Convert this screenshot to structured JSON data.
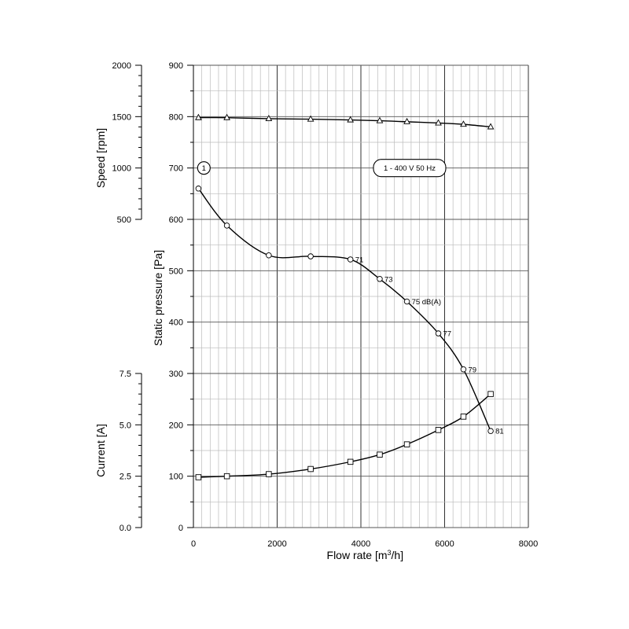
{
  "chart_data": {
    "type": "line",
    "xlabel": "Flow rate [m³/h]",
    "x_ticks": [
      "0",
      "2000",
      "4000",
      "6000",
      "8000"
    ],
    "xlim": [
      0,
      8000
    ],
    "axes": {
      "pressure": {
        "label": "Static pressure [Pa]",
        "ylim": [
          0,
          900
        ],
        "ticks": [
          "0",
          "100",
          "200",
          "300",
          "400",
          "500",
          "600",
          "700",
          "800",
          "900"
        ]
      },
      "speed": {
        "label": "Speed [rpm]",
        "ylim": [
          500,
          2000
        ],
        "ticks": [
          "500",
          "1000",
          "1500",
          "2000"
        ]
      },
      "current": {
        "label": "Current [A]",
        "ylim": [
          0,
          7.5
        ],
        "ticks": [
          "0.0",
          "2.5",
          "5.0",
          "7.5"
        ]
      }
    },
    "series": [
      {
        "axis": "speed",
        "marker": "triangle",
        "x": [
          120,
          800,
          1800,
          2800,
          3750,
          4450,
          5100,
          5850,
          6450,
          7100
        ],
        "y": [
          1490,
          1490,
          1480,
          1475,
          1468,
          1460,
          1450,
          1438,
          1425,
          1400
        ]
      },
      {
        "axis": "pressure",
        "marker": "circle",
        "x": [
          120,
          800,
          1800,
          2800,
          3750,
          4450,
          5100,
          5850,
          6450,
          7100
        ],
        "y": [
          660,
          588,
          530,
          528,
          522,
          484,
          440,
          378,
          308,
          188
        ]
      },
      {
        "axis": "current",
        "marker": "square",
        "x": [
          120,
          800,
          1800,
          2800,
          3750,
          4450,
          5100,
          5850,
          6450,
          7100
        ],
        "y": [
          2.45,
          2.5,
          2.6,
          2.85,
          3.2,
          3.55,
          4.05,
          4.75,
          5.4,
          6.5
        ]
      }
    ],
    "annotations": [
      {
        "text": "71",
        "x": 3750,
        "y": 522
      },
      {
        "text": "73",
        "x": 4450,
        "y": 484
      },
      {
        "text": "75 dB(A)",
        "x": 5100,
        "y": 440
      },
      {
        "text": "77",
        "x": 5850,
        "y": 378
      },
      {
        "text": "79",
        "x": 6450,
        "y": 308
      },
      {
        "text": "81",
        "x": 7100,
        "y": 188
      }
    ],
    "curve_label": "1",
    "legend_box": "1 - 400 V 50 Hz",
    "grid": true
  }
}
